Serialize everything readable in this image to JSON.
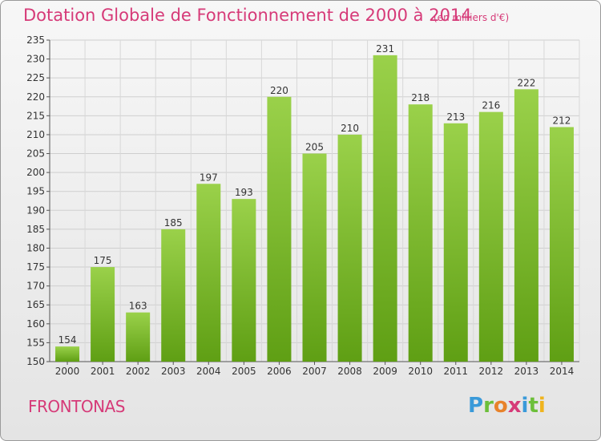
{
  "header": {
    "title": "Dotation Globale de Fonctionnement de 2000 à 2014",
    "unit": "(en milliers d'€)"
  },
  "footer": {
    "commune": "FRONTONAS",
    "logo": [
      "P",
      "r",
      "o",
      "x",
      "i",
      "t",
      "i"
    ]
  },
  "chart_data": {
    "type": "bar",
    "categories": [
      "2000",
      "2001",
      "2002",
      "2003",
      "2004",
      "2005",
      "2006",
      "2007",
      "2008",
      "2009",
      "2010",
      "2011",
      "2012",
      "2013",
      "2014"
    ],
    "values": [
      154,
      175,
      163,
      185,
      197,
      193,
      220,
      205,
      210,
      231,
      218,
      213,
      216,
      222,
      212
    ],
    "ylim": [
      150,
      235
    ],
    "yticks": [
      150,
      155,
      160,
      165,
      170,
      175,
      180,
      185,
      190,
      195,
      200,
      205,
      210,
      215,
      220,
      225,
      230,
      235
    ],
    "grid": true,
    "bar_color": "#7fbf2a"
  }
}
